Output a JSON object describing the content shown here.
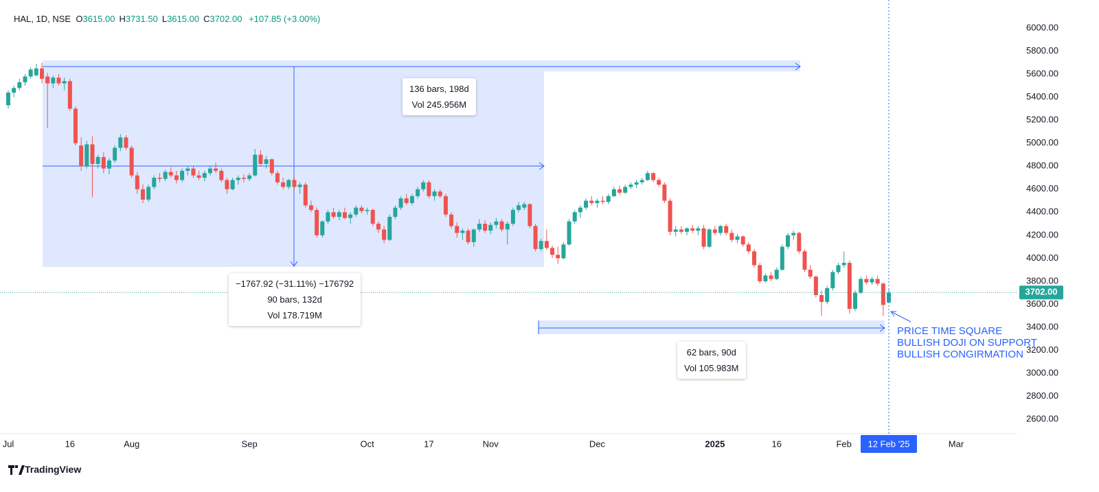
{
  "chart_data": {
    "type": "candlestick",
    "header": {
      "symbol": "HAL, 1D, NSE",
      "items": [
        {
          "key": "O",
          "value": "3615.00"
        },
        {
          "key": "H",
          "value": "3731.50"
        },
        {
          "key": "L",
          "value": "3615.00"
        },
        {
          "key": "C",
          "value": "3702.00"
        }
      ],
      "change": "+107.85 (+3.00%)"
    },
    "categories": [
      "Jul",
      null,
      null,
      null,
      null,
      null,
      null,
      null,
      null,
      null,
      null,
      "16",
      null,
      null,
      null,
      null,
      null,
      null,
      null,
      null,
      null,
      null,
      "Aug",
      null,
      null,
      null,
      null,
      null,
      null,
      null,
      null,
      null,
      null,
      null,
      null,
      null,
      null,
      null,
      null,
      null,
      null,
      null,
      null,
      "Sep",
      null,
      null,
      null,
      null,
      null,
      null,
      null,
      null,
      null,
      null,
      null,
      null,
      null,
      null,
      null,
      null,
      null,
      null,
      null,
      null,
      "Oct",
      null,
      null,
      null,
      null,
      null,
      null,
      null,
      null,
      null,
      null,
      "17",
      null,
      null,
      null,
      null,
      null,
      null,
      null,
      null,
      null,
      null,
      "Nov",
      null,
      null,
      null,
      null,
      null,
      null,
      null,
      null,
      null,
      null,
      null,
      null,
      null,
      null,
      null,
      null,
      null,
      null,
      "Dec",
      null,
      null,
      null,
      null,
      null,
      null,
      null,
      null,
      null,
      null,
      null,
      null,
      null,
      null,
      null,
      null,
      null,
      null,
      null,
      null,
      "2025",
      null,
      null,
      null,
      null,
      null,
      null,
      null,
      null,
      null,
      null,
      "16",
      null,
      null,
      null,
      null,
      null,
      null,
      null,
      null,
      null,
      null,
      null,
      "Feb",
      null,
      null,
      null,
      null,
      null,
      null,
      null,
      "12 Feb '25",
      null,
      null,
      null,
      null,
      null,
      null,
      null,
      null,
      null,
      null,
      null,
      "Mar"
    ],
    "open": [
      5330,
      5440,
      5480,
      5530,
      5580,
      5590,
      5650,
      5580,
      5520,
      5570,
      5520,
      5540,
      5300,
      4980,
      4800,
      4990,
      4820,
      4880,
      4780,
      4850,
      4960,
      5050,
      4960,
      4720,
      4600,
      4510,
      4620,
      4700,
      4690,
      4750,
      4720,
      4680,
      4760,
      4780,
      4720,
      4700,
      4740,
      4780,
      4760,
      4680,
      4600,
      4680,
      4700,
      4690,
      4720,
      4900,
      4820,
      4860,
      4740,
      4660,
      4620,
      4680,
      4620,
      4640,
      4460,
      4420,
      4200,
      4320,
      4400,
      4360,
      4400,
      4350,
      4380,
      4440,
      4410,
      4420,
      4300,
      4250,
      4160,
      4360,
      4440,
      4520,
      4480,
      4540,
      4600,
      4660,
      4540,
      4580,
      4540,
      4380,
      4280,
      4220,
      4240,
      4140,
      4250,
      4300,
      4240,
      4290,
      4320,
      4250,
      4300,
      4420,
      4440,
      4470,
      4280,
      4080,
      4150,
      4090,
      4030,
      4000,
      4120,
      4320,
      4400,
      4440,
      4500,
      4480,
      4500,
      4490,
      4540,
      4600,
      4570,
      4620,
      4640,
      4660,
      4680,
      4740,
      4680,
      4640,
      4500,
      4230,
      4250,
      4230,
      4260,
      4240,
      4260,
      4100,
      4250,
      4220,
      4280,
      4220,
      4160,
      4190,
      4120,
      4060,
      3940,
      3800,
      3850,
      3820,
      3900,
      4100,
      4200,
      4220,
      4060,
      3900,
      3840,
      3680,
      3620,
      3740,
      3880,
      3940,
      3960,
      3560,
      3700,
      3820,
      3790,
      3820,
      3780,
      3615,
      null,
      null,
      null,
      null,
      null,
      null,
      null,
      null,
      null,
      null,
      null,
      null
    ],
    "high": [
      5460,
      5500,
      5560,
      5600,
      5660,
      5690,
      5700,
      5610,
      5590,
      5600,
      5570,
      5560,
      5320,
      5050,
      5020,
      5060,
      4900,
      4920,
      4870,
      4980,
      5080,
      5070,
      4980,
      4750,
      4640,
      4640,
      4720,
      4740,
      4770,
      4790,
      4760,
      4780,
      4800,
      4800,
      4760,
      4760,
      4800,
      4830,
      4780,
      4700,
      4700,
      4720,
      4730,
      4740,
      4950,
      4940,
      4890,
      4870,
      4760,
      4700,
      4690,
      4700,
      4660,
      4660,
      4500,
      4440,
      4330,
      4420,
      4440,
      4420,
      4440,
      4400,
      4460,
      4460,
      4440,
      4430,
      4320,
      4280,
      4380,
      4460,
      4540,
      4560,
      4560,
      4620,
      4680,
      4680,
      4600,
      4600,
      4560,
      4400,
      4310,
      4260,
      4260,
      4260,
      4340,
      4330,
      4310,
      4350,
      4340,
      4320,
      4440,
      4490,
      4490,
      4480,
      4300,
      4170,
      4250,
      4110,
      4100,
      4140,
      4340,
      4420,
      4460,
      4520,
      4540,
      4520,
      4540,
      4560,
      4620,
      4630,
      4640,
      4660,
      4680,
      4700,
      4760,
      4750,
      4700,
      4660,
      4520,
      4280,
      4280,
      4270,
      4290,
      4280,
      4290,
      4260,
      4280,
      4290,
      4300,
      4250,
      4210,
      4200,
      4140,
      4080,
      3960,
      3870,
      3880,
      3920,
      4120,
      4220,
      4240,
      4230,
      4080,
      3940,
      3850,
      3720,
      3760,
      3900,
      3960,
      4060,
      3980,
      3720,
      3840,
      3850,
      3840,
      3850,
      3790,
      3731.5,
      null,
      null,
      null,
      null,
      null,
      null,
      null,
      null,
      null,
      null,
      null,
      null
    ],
    "low": [
      5300,
      5400,
      5460,
      5500,
      5560,
      5580,
      5520,
      5130,
      5480,
      5500,
      5460,
      5280,
      4980,
      4760,
      4780,
      4530,
      4780,
      4740,
      4730,
      4830,
      4930,
      4940,
      4700,
      4560,
      4480,
      4490,
      4600,
      4660,
      4670,
      4700,
      4650,
      4660,
      4720,
      4700,
      4680,
      4670,
      4720,
      4740,
      4660,
      4560,
      4590,
      4640,
      4660,
      4670,
      4710,
      4800,
      4780,
      4720,
      4640,
      4600,
      4600,
      4600,
      4560,
      4440,
      4400,
      4180,
      4180,
      4300,
      4340,
      4330,
      4340,
      4300,
      4360,
      4390,
      4380,
      4280,
      4220,
      4130,
      4150,
      4340,
      4420,
      4460,
      4460,
      4520,
      4580,
      4520,
      4500,
      4520,
      4360,
      4260,
      4180,
      4160,
      4120,
      4100,
      4230,
      4220,
      4210,
      4260,
      4230,
      4120,
      4280,
      4400,
      4420,
      4260,
      4060,
      4060,
      4070,
      4000,
      3950,
      3990,
      4110,
      4300,
      4350,
      4420,
      4460,
      4440,
      4470,
      4470,
      4530,
      4550,
      4560,
      4600,
      4610,
      4640,
      4670,
      4660,
      4620,
      4480,
      4200,
      4190,
      4210,
      4200,
      4220,
      4200,
      4080,
      4090,
      4200,
      4200,
      4200,
      4140,
      4130,
      4100,
      4040,
      3920,
      3780,
      3790,
      3800,
      3810,
      3890,
      4080,
      4160,
      4040,
      3880,
      3820,
      3660,
      3500,
      3600,
      3720,
      3860,
      3920,
      3520,
      3540,
      3690,
      3770,
      3770,
      3760,
      3500,
      3615,
      null,
      null,
      null,
      null,
      null,
      null,
      null,
      null,
      null,
      null,
      null,
      null
    ],
    "close": [
      5440,
      5480,
      5530,
      5580,
      5640,
      5650,
      5560,
      5520,
      5570,
      5520,
      5540,
      5300,
      5000,
      4800,
      4990,
      4820,
      4880,
      4780,
      4850,
      4960,
      5050,
      4960,
      4720,
      4600,
      4510,
      4620,
      4700,
      4690,
      4750,
      4720,
      4680,
      4760,
      4780,
      4720,
      4700,
      4740,
      4780,
      4760,
      4680,
      4600,
      4680,
      4700,
      4690,
      4720,
      4900,
      4820,
      4860,
      4740,
      4660,
      4620,
      4680,
      4620,
      4640,
      4460,
      4420,
      4200,
      4320,
      4400,
      4360,
      4400,
      4350,
      4380,
      4440,
      4410,
      4420,
      4300,
      4250,
      4160,
      4360,
      4440,
      4520,
      4480,
      4540,
      4600,
      4660,
      4540,
      4580,
      4540,
      4380,
      4280,
      4220,
      4240,
      4140,
      4250,
      4300,
      4240,
      4290,
      4320,
      4250,
      4300,
      4420,
      4460,
      4470,
      4280,
      4080,
      4150,
      4090,
      4030,
      4000,
      4120,
      4320,
      4400,
      4440,
      4500,
      4480,
      4500,
      4490,
      4540,
      4600,
      4570,
      4620,
      4640,
      4660,
      4680,
      4740,
      4680,
      4640,
      4500,
      4230,
      4250,
      4230,
      4260,
      4240,
      4260,
      4100,
      4250,
      4220,
      4280,
      4220,
      4160,
      4190,
      4120,
      4060,
      3940,
      3800,
      3850,
      3820,
      3900,
      4100,
      4200,
      4220,
      4060,
      3900,
      3840,
      3680,
      3620,
      3740,
      3880,
      3940,
      3960,
      3560,
      3700,
      3820,
      3790,
      3820,
      3780,
      3594,
      3702,
      null,
      null,
      null,
      null,
      null,
      null,
      null,
      null,
      null,
      null,
      null,
      null
    ],
    "up_color": "#26a69a",
    "down_color": "#ef5350",
    "ylim": [
      2475,
      6245
    ],
    "yticks": [
      {
        "value": 2600,
        "label": "2600.00"
      },
      {
        "value": 2800,
        "label": "2800.00"
      },
      {
        "value": 3000,
        "label": "3000.00"
      },
      {
        "value": 3200,
        "label": "3200.00"
      },
      {
        "value": 3400,
        "label": "3400.00"
      },
      {
        "value": 3600,
        "label": "3600.00"
      },
      {
        "value": 3800,
        "label": "3800.00"
      },
      {
        "value": 4000,
        "label": "4000.00"
      },
      {
        "value": 4200,
        "label": "4200.00"
      },
      {
        "value": 4400,
        "label": "4400.00"
      },
      {
        "value": 4600,
        "label": "4600.00"
      },
      {
        "value": 4800,
        "label": "4800.00"
      },
      {
        "value": 5000,
        "label": "5000.00"
      },
      {
        "value": 5200,
        "label": "5200.00"
      },
      {
        "value": 5400,
        "label": "5400.00"
      },
      {
        "value": 5600,
        "label": "5600.00"
      },
      {
        "value": 5800,
        "label": "5800.00"
      },
      {
        "value": 6000,
        "label": "6000.00"
      }
    ],
    "grid": false,
    "last_price_label": "3702.00",
    "measures": [
      {
        "lines": [
          "136 bars, 198d",
          "Vol 245.956M"
        ]
      },
      {
        "lines": [
          "−1767.92 (−31.11%) −176792",
          "90 bars, 132d",
          "Vol 178.719M"
        ]
      },
      {
        "lines": [
          "62 bars, 90d",
          "Vol 105.983M"
        ]
      }
    ],
    "annotation": [
      "PRICE TIME SQUARE",
      "BULLISH DOJI ON SUPPORT",
      "BULLISH CONGIRMATION"
    ],
    "brand": "TradingView"
  }
}
